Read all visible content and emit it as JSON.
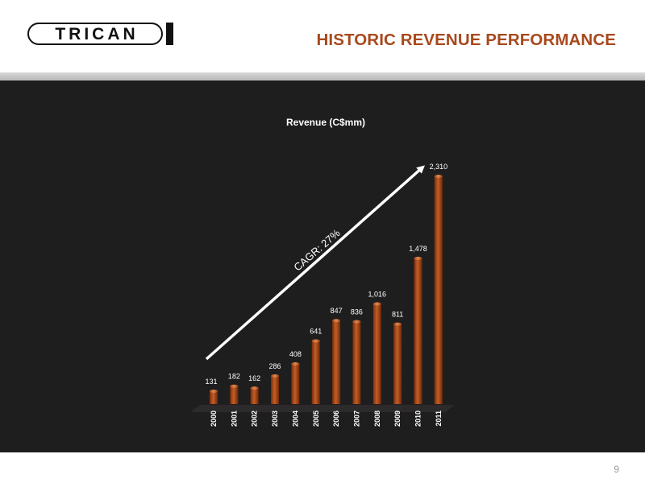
{
  "header": {
    "logo_text": "TRICAN",
    "title": "HISTORIC REVENUE PERFORMANCE"
  },
  "footer": {
    "page_number": "9"
  },
  "colors": {
    "title": "#a8491d",
    "bar": "#b4501c",
    "background": "#1f1e1e",
    "text": "#ffffff"
  },
  "chart_data": {
    "type": "bar",
    "title": "Revenue (C$mm)",
    "categories": [
      "2000",
      "2001",
      "2002",
      "2003",
      "2004",
      "2005",
      "2006",
      "2007",
      "2008",
      "2009",
      "2010",
      "2011"
    ],
    "values": [
      131,
      182,
      162,
      286,
      408,
      641,
      847,
      836,
      1016,
      811,
      1478,
      2310
    ],
    "data_labels": [
      "131",
      "182",
      "162",
      "286",
      "408",
      "641",
      "847",
      "836",
      "1,016",
      "811",
      "1,478",
      "2,310"
    ],
    "ylim": [
      0,
      2400
    ],
    "grid": false,
    "legend": "none",
    "annotation": "CAGR: 27%"
  }
}
